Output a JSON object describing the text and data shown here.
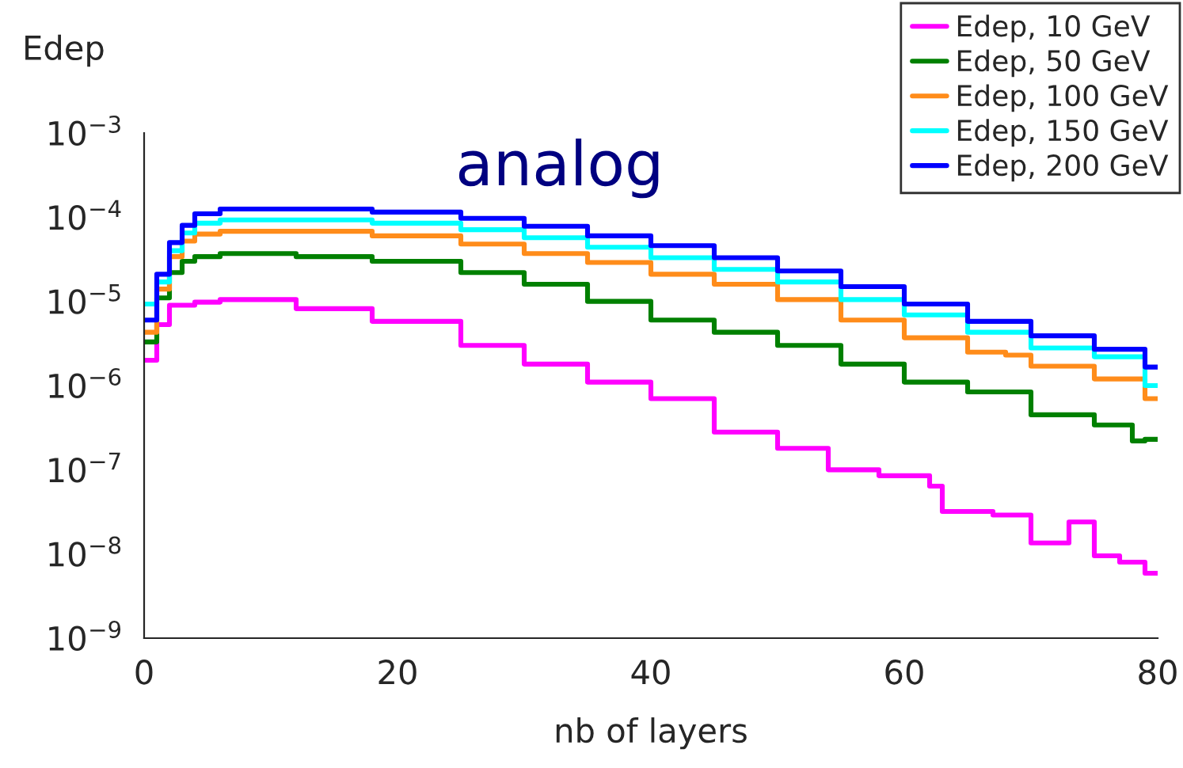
{
  "chart_data": {
    "type": "step",
    "title": "analog",
    "xlabel": "nb of layers",
    "ylabel": "Edep",
    "xlim": [
      0,
      80
    ],
    "xticks": [
      0,
      20,
      40,
      60,
      80
    ],
    "ylim": [
      1e-09,
      0.001
    ],
    "log": true,
    "yticks": [
      {
        "value": 1e-09,
        "label": "10$^{−9}$"
      },
      {
        "value": 1e-08,
        "label": "10$^{−8}$"
      },
      {
        "value": 1e-07,
        "label": "10$^{−7}$"
      },
      {
        "value": 1e-06,
        "label": "10$^{−6}$"
      },
      {
        "value": 1e-05,
        "label": "10$^{−5}$"
      },
      {
        "value": 0.0001,
        "label": "10$^{−4}$"
      },
      {
        "value": 0.001,
        "label": "10$^{−3}$"
      }
    ],
    "legend": "top right",
    "grid": false,
    "series": [
      {
        "name": "Edep, 10 GeV",
        "color": "#ff00ff",
        "x": [
          0,
          1,
          2,
          4,
          6,
          12,
          18,
          25,
          30,
          35,
          40,
          45,
          50,
          54,
          58,
          62,
          63,
          67,
          70,
          73,
          75,
          77,
          79,
          80
        ],
        "values": [
          2e-06,
          5.3e-06,
          9e-06,
          9.8e-06,
          1.05e-05,
          8.2e-06,
          5.8e-06,
          3e-06,
          1.8e-06,
          1.1e-06,
          7e-07,
          2.8e-07,
          1.8e-07,
          1e-07,
          8.5e-08,
          6.4e-08,
          3.2e-08,
          2.9e-08,
          1.35e-08,
          2.4e-08,
          9.5e-09,
          8e-09,
          5.9e-09,
          5.9e-09
        ]
      },
      {
        "name": "Edep, 50 GeV",
        "color": "#008000",
        "x": [
          0,
          1,
          2,
          3,
          4,
          6,
          12,
          18,
          25,
          30,
          35,
          40,
          45,
          50,
          55,
          60,
          65,
          70,
          75,
          78,
          79,
          80
        ],
        "values": [
          3.3e-06,
          1.1e-05,
          2.2e-05,
          3e-05,
          3.4e-05,
          3.7e-05,
          3.4e-05,
          3e-05,
          2.2e-05,
          1.6e-05,
          1e-05,
          6e-06,
          4.3e-06,
          3e-06,
          1.8e-06,
          1.1e-06,
          8.4e-07,
          4.5e-07,
          3.4e-07,
          2.2e-07,
          2.3e-07,
          2.3e-07
        ]
      },
      {
        "name": "Edep, 100 GeV",
        "color": "#ff8c1a",
        "x": [
          0,
          1,
          2,
          3,
          4,
          6,
          12,
          18,
          25,
          30,
          35,
          40,
          45,
          50,
          55,
          60,
          65,
          68,
          70,
          75,
          79,
          80
        ],
        "values": [
          4.3e-06,
          1.4e-05,
          3.4e-05,
          5.2e-05,
          6.3e-05,
          6.8e-05,
          6.8e-05,
          6e-05,
          4.8e-05,
          3.7e-05,
          2.9e-05,
          2.1e-05,
          1.6e-05,
          1.05e-05,
          6e-06,
          3.7e-06,
          2.5e-06,
          2.3e-06,
          1.7e-06,
          1.2e-06,
          7e-07,
          7e-07
        ]
      },
      {
        "name": "Edep, 150 GeV",
        "color": "#00ffff",
        "x": [
          0,
          1,
          2,
          3,
          4,
          6,
          12,
          18,
          25,
          30,
          35,
          40,
          45,
          50,
          55,
          60,
          65,
          70,
          75,
          79,
          80
        ],
        "values": [
          9.3e-06,
          1.7e-05,
          4e-05,
          6.5e-05,
          8.5e-05,
          9.3e-05,
          9.3e-05,
          8.5e-05,
          7.1e-05,
          5.7e-05,
          4.4e-05,
          3.3e-05,
          2.4e-05,
          1.7e-05,
          1.05e-05,
          6.9e-06,
          4.3e-06,
          2.8e-06,
          2.2e-06,
          1e-06,
          1e-06
        ]
      },
      {
        "name": "Edep, 200 GeV",
        "color": "#0000ff",
        "x": [
          0,
          1,
          2,
          3,
          4,
          6,
          12,
          18,
          25,
          30,
          35,
          40,
          45,
          50,
          55,
          60,
          65,
          70,
          75,
          79,
          80
        ],
        "values": [
          6e-06,
          2.1e-05,
          5e-05,
          8e-05,
          0.00011,
          0.000125,
          0.000125,
          0.000115,
          9.7e-05,
          7.8e-05,
          6e-05,
          4.6e-05,
          3.3e-05,
          2.3e-05,
          1.5e-05,
          9.3e-06,
          5.8e-06,
          3.9e-06,
          2.7e-06,
          1.66e-06,
          1.66e-06
        ]
      }
    ]
  }
}
